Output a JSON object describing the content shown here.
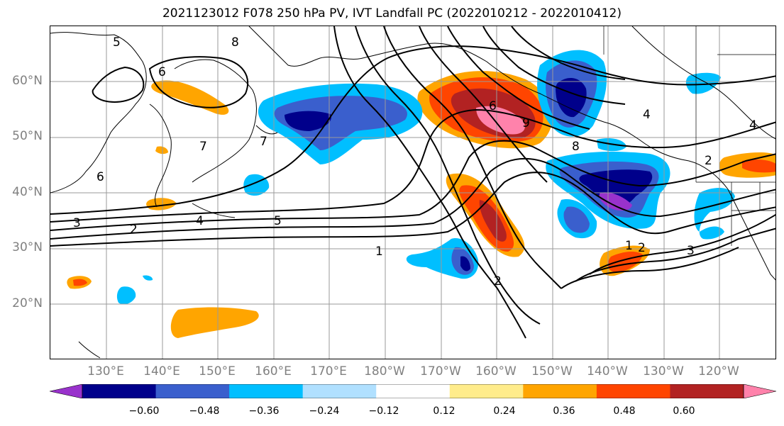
{
  "title": "2021123012 F078 250 hPa PV, IVT Landfall PC (2022010212 - 2022010412)",
  "lat_ticks": [
    "60°N",
    "50°N",
    "40°N",
    "30°N",
    "20°N"
  ],
  "lon_ticks": [
    "130°E",
    "140°E",
    "150°E",
    "160°E",
    "170°E",
    "180°W",
    "170°W",
    "160°W",
    "150°W",
    "140°W",
    "130°W",
    "120°W"
  ],
  "contour_labels": [
    "5",
    "8",
    "6",
    "7",
    "7",
    "6",
    "3",
    "2",
    "4",
    "5",
    "1",
    "2",
    "8",
    "9",
    "6",
    "4",
    "2",
    "3",
    "1",
    "2",
    "4"
  ],
  "colorbar": {
    "tick_labels": [
      "−0.60",
      "−0.48",
      "−0.36",
      "−0.24",
      "−0.12",
      "0.12",
      "0.24",
      "0.36",
      "0.48",
      "0.60"
    ],
    "colors": [
      "#9932cc",
      "#00008b",
      "#3a5fcd",
      "#00bfff",
      "#b0e0ff",
      "#ffffff",
      "#ffec8b",
      "#ffa500",
      "#ff4500",
      "#b22222",
      "#ff82ab"
    ]
  }
}
